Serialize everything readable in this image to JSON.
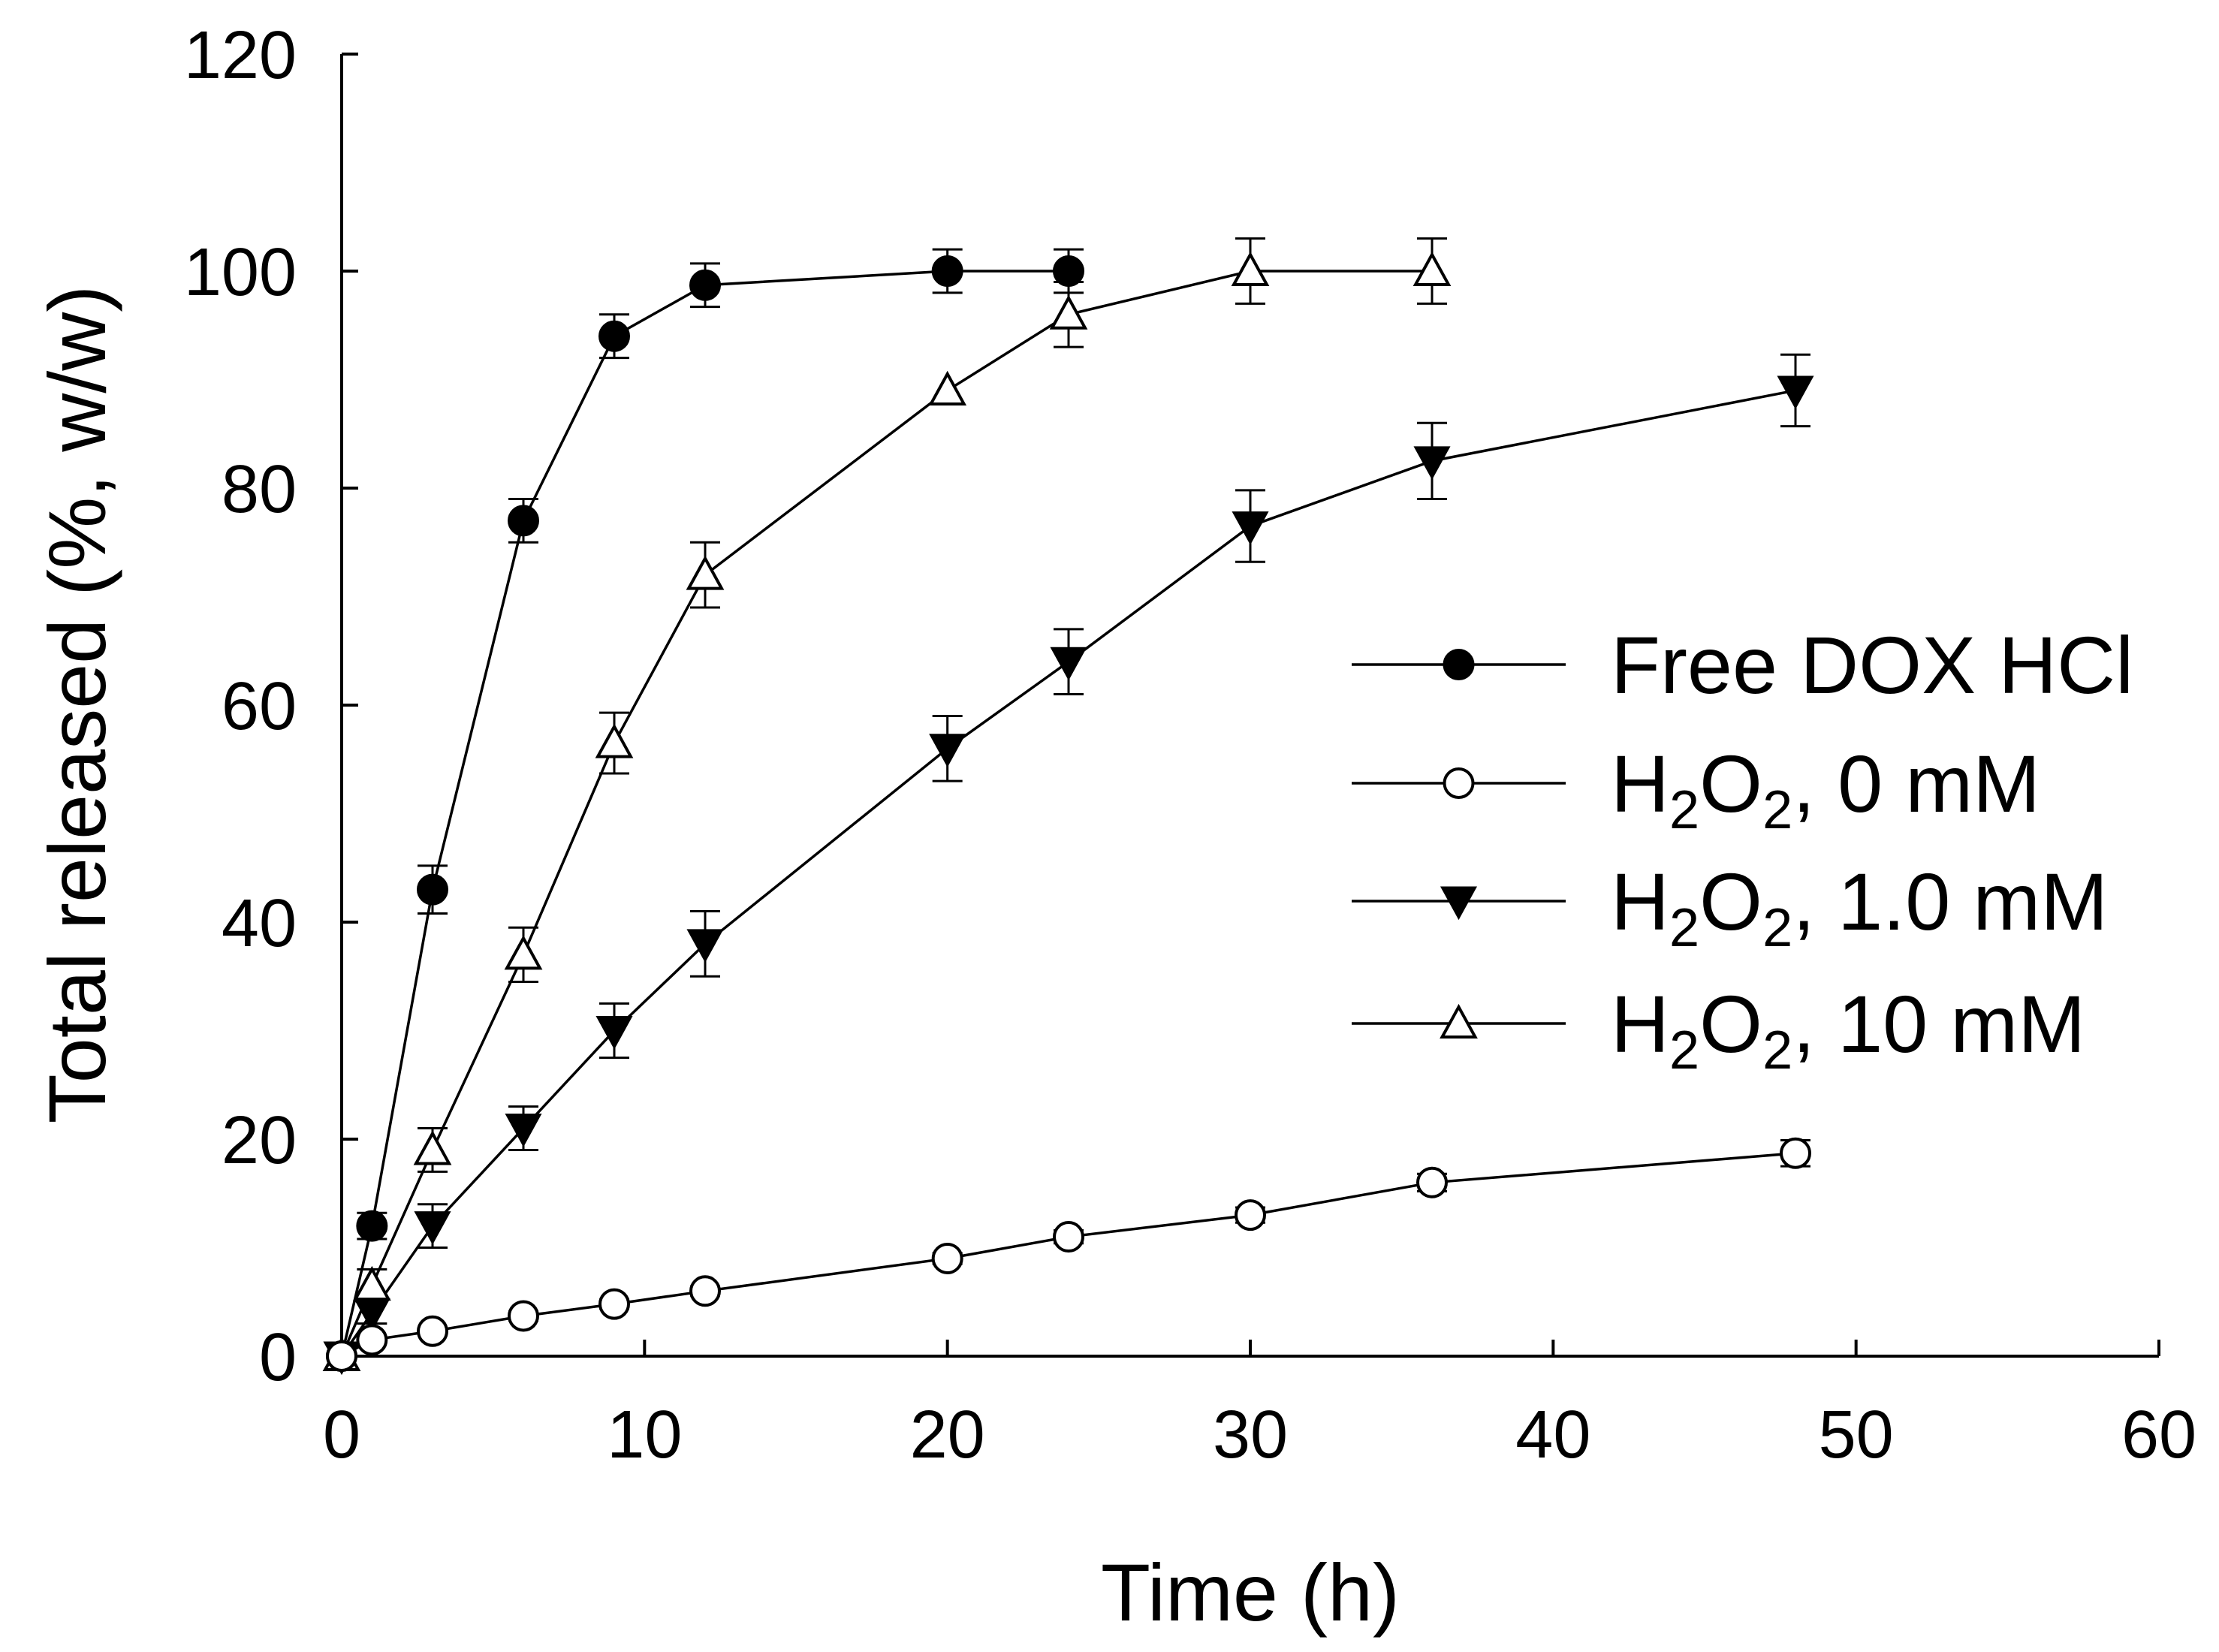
{
  "chart_data": {
    "type": "line",
    "title": "",
    "xlabel": "Time (h)",
    "ylabel": "Total released (%, w/w)",
    "xlim": [
      0,
      60
    ],
    "ylim": [
      0,
      120
    ],
    "xticks": [
      0,
      10,
      20,
      30,
      40,
      50,
      60
    ],
    "yticks": [
      0,
      20,
      40,
      60,
      80,
      100,
      120
    ],
    "grid": false,
    "legend_position": "right",
    "series": [
      {
        "name": "Free DOX HCl",
        "legend_text": "Free DOX HCl",
        "marker": "circle-filled",
        "x": [
          0,
          1,
          3,
          6,
          9,
          12,
          20,
          24
        ],
        "y": [
          0,
          12,
          43,
          77,
          94,
          98.7,
          100,
          100
        ],
        "err": [
          0,
          1.2,
          2.2,
          2,
          2,
          2,
          2,
          2
        ]
      },
      {
        "name": "H2O2, 0 mM",
        "legend_text": {
          "base": "H",
          "sub1": "2",
          "mid": "O",
          "sub2": "2",
          "rest": ", 0 mM"
        },
        "marker": "circle-open",
        "x": [
          0,
          1,
          3,
          6,
          9,
          12,
          20,
          24,
          30,
          36,
          48
        ],
        "y": [
          0,
          1.5,
          2.3,
          3.7,
          4.8,
          6,
          9,
          11,
          13,
          16,
          18.7
        ],
        "err": [
          0,
          0.3,
          0.3,
          0.4,
          0.4,
          0.4,
          0.5,
          0.6,
          0.7,
          0.8,
          1.2
        ]
      },
      {
        "name": "H2O2, 1.0 mM",
        "legend_text": {
          "base": "H",
          "sub1": "2",
          "mid": "O",
          "sub2": "2",
          "rest": ", 1.0 mM"
        },
        "marker": "triangle-down-filled",
        "x": [
          0,
          1,
          3,
          6,
          9,
          12,
          20,
          24,
          30,
          36,
          48
        ],
        "y": [
          0,
          4,
          12,
          21,
          30,
          38,
          56,
          64,
          76.5,
          82.5,
          89
        ],
        "err": [
          0,
          1,
          2,
          2,
          2.5,
          3,
          3,
          3,
          3.3,
          3.5,
          3.3
        ]
      },
      {
        "name": "H2O2, 10 mM",
        "legend_text": {
          "base": "H",
          "sub1": "2",
          "mid": "O",
          "sub2": "2",
          "rest": ", 10 mM"
        },
        "marker": "triangle-up-open",
        "x": [
          0,
          1,
          3,
          6,
          9,
          12,
          20,
          24,
          30,
          36
        ],
        "y": [
          0,
          6.5,
          19,
          37,
          56.5,
          72,
          89,
          96,
          100,
          100
        ],
        "err": [
          0,
          1.5,
          2,
          2.5,
          2.8,
          3,
          0,
          3,
          3,
          3
        ]
      }
    ]
  }
}
